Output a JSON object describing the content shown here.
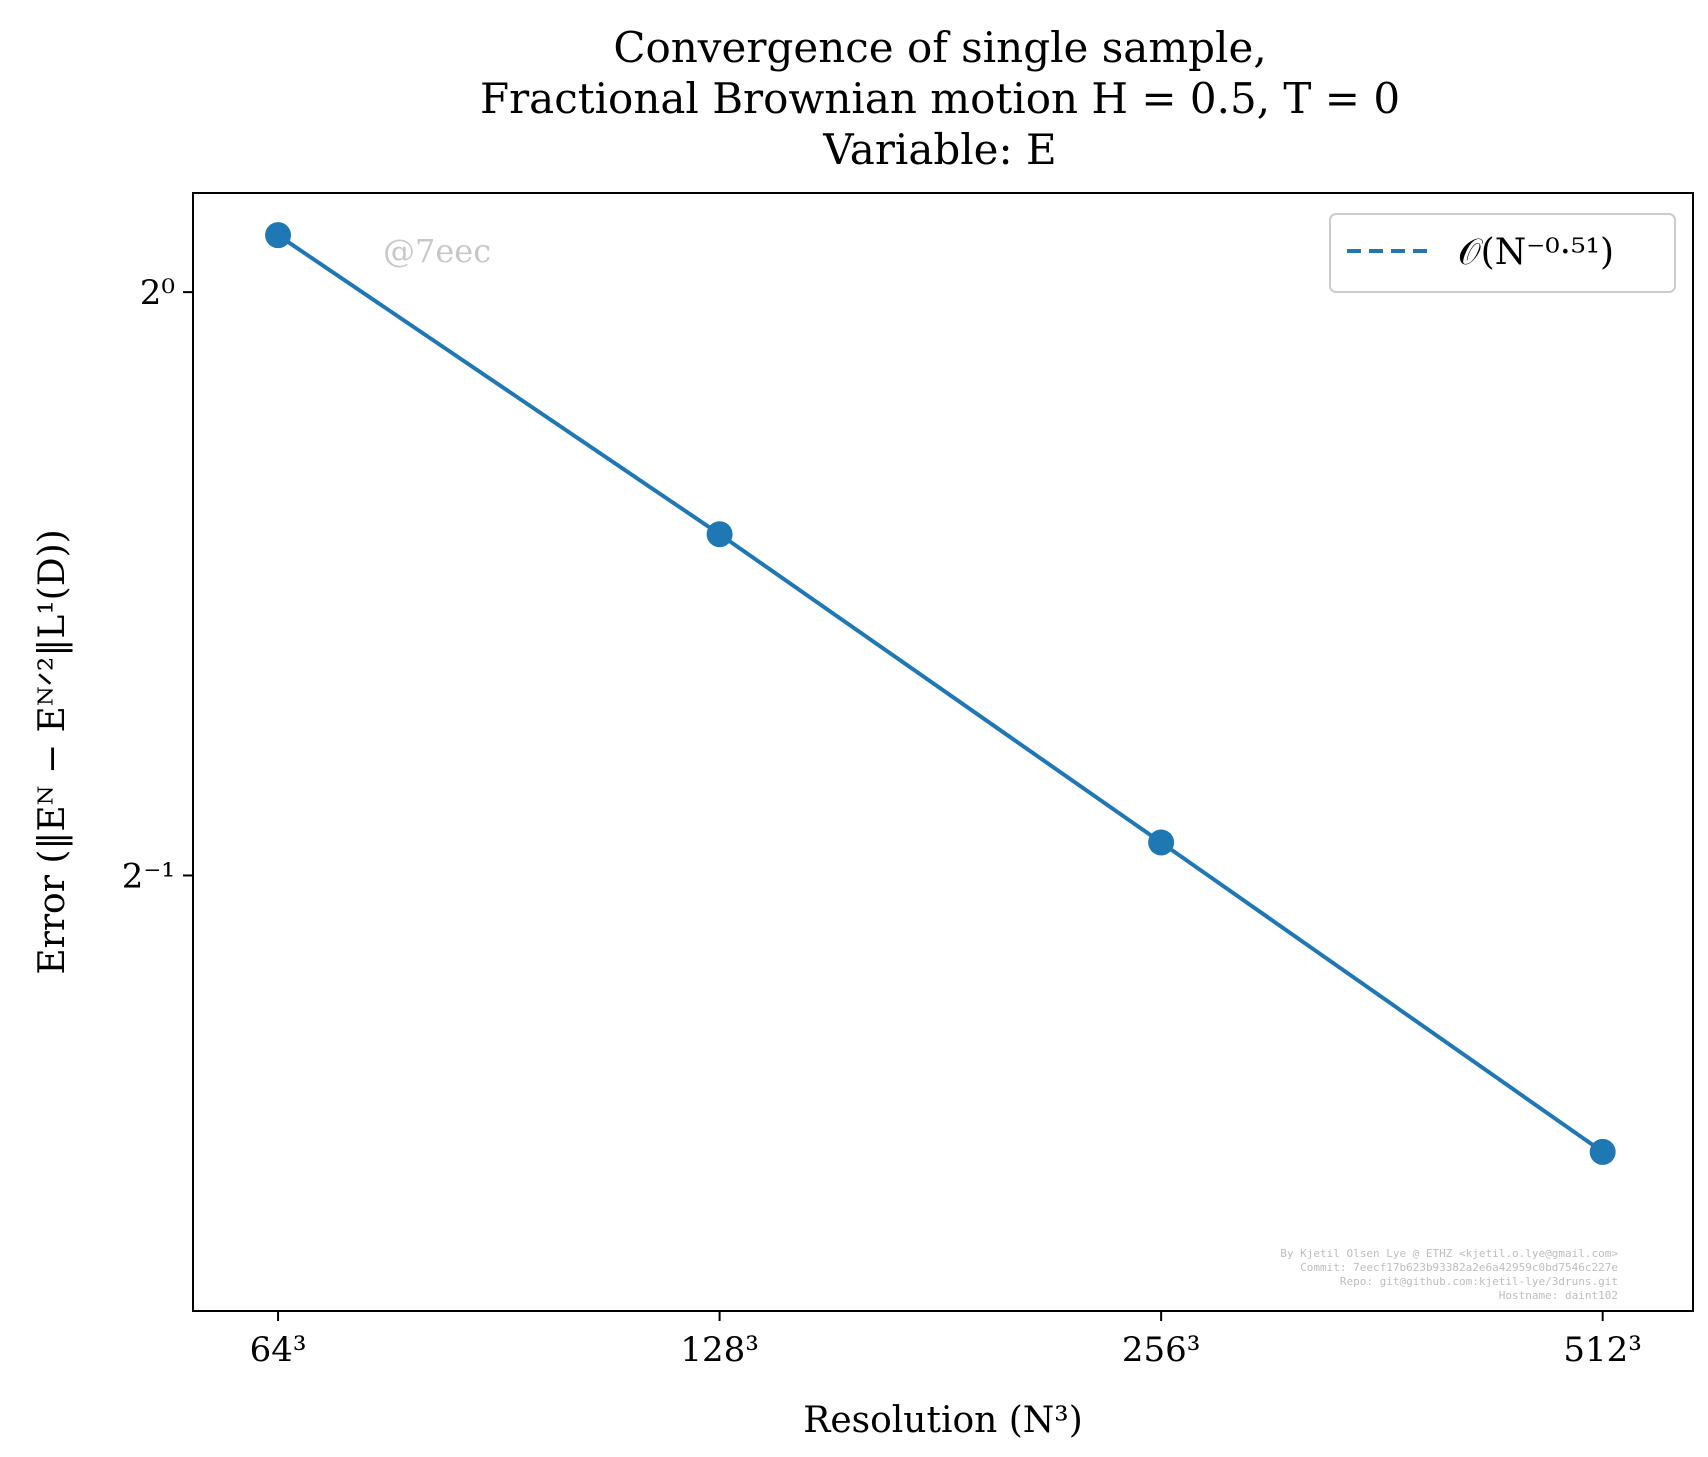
{
  "chart_data": {
    "type": "line",
    "title": [
      "Convergence of single sample,",
      "Fractional Brownian motion H = 0.5, T = 0",
      "Variable: E"
    ],
    "xlabel": "Resolution (N³)",
    "ylabel": "Error (‖Eᴺ − Eᴺᐟ²‖L¹(D))",
    "x_scale": "log2",
    "y_scale": "log2",
    "x": [
      64,
      128,
      256,
      512
    ],
    "x_tick_labels": [
      "64³",
      "128³",
      "256³",
      "512³"
    ],
    "y_ticks": [
      {
        "value": 1.0,
        "label": "2⁰"
      },
      {
        "value": 0.5,
        "label": "2⁻¹"
      }
    ],
    "xlim": [
      56,
      590
    ],
    "ylim": [
      0.298,
      1.125
    ],
    "series": [
      {
        "name": "𝒪(N⁻⁰·⁵¹)",
        "values": [
          1.07,
          0.75,
          0.52,
          0.36
        ],
        "color": "#1f77b4",
        "line_style": "solid",
        "marker": "circle"
      }
    ],
    "legend": {
      "position": "top-right",
      "entry": "𝒪(N⁻⁰·⁵¹)",
      "line_style": "dashed",
      "color": "#1f77b4"
    },
    "grid": false,
    "watermark": "@7eec",
    "metadata_lines": [
      "By Kjetil Olsen Lye @ ETHZ <kjetil.o.lye@gmail.com>",
      "Commit: 7eecf17b623b93382a2e6a42959c0bd7546c227e",
      "Repo: git@github.com:kjetil-lye/3druns.git",
      "Hostname: daint102"
    ]
  }
}
